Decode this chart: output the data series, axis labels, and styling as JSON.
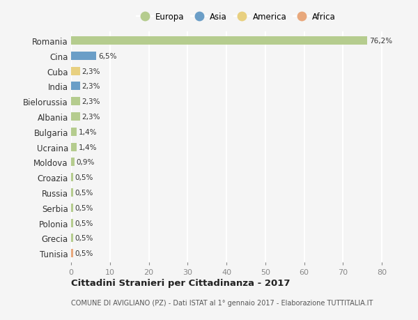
{
  "countries": [
    "Romania",
    "Cina",
    "Cuba",
    "India",
    "Bielorussia",
    "Albania",
    "Bulgaria",
    "Ucraina",
    "Moldova",
    "Croazia",
    "Russia",
    "Serbia",
    "Polonia",
    "Grecia",
    "Tunisia"
  ],
  "values": [
    76.2,
    6.5,
    2.3,
    2.3,
    2.3,
    2.3,
    1.4,
    1.4,
    0.9,
    0.5,
    0.5,
    0.5,
    0.5,
    0.5,
    0.5
  ],
  "labels": [
    "76,2%",
    "6,5%",
    "2,3%",
    "2,3%",
    "2,3%",
    "2,3%",
    "1,4%",
    "1,4%",
    "0,9%",
    "0,5%",
    "0,5%",
    "0,5%",
    "0,5%",
    "0,5%",
    "0,5%"
  ],
  "continents": [
    "Europa",
    "Asia",
    "America",
    "Asia",
    "Europa",
    "Europa",
    "Europa",
    "Europa",
    "Europa",
    "Europa",
    "Europa",
    "Europa",
    "Europa",
    "Europa",
    "Africa"
  ],
  "colors": {
    "Europa": "#b5cc8e",
    "Asia": "#6b9ec7",
    "America": "#e8d080",
    "Africa": "#e8a87c"
  },
  "legend_order": [
    "Europa",
    "Asia",
    "America",
    "Africa"
  ],
  "title": "Cittadini Stranieri per Cittadinanza - 2017",
  "subtitle": "COMUNE DI AVIGLIANO (PZ) - Dati ISTAT al 1° gennaio 2017 - Elaborazione TUTTITALIA.IT",
  "xlim": [
    0,
    85
  ],
  "xticks": [
    0,
    10,
    20,
    30,
    40,
    50,
    60,
    70,
    80
  ],
  "background_color": "#f5f5f5",
  "grid_color": "#ffffff",
  "bar_height": 0.55
}
